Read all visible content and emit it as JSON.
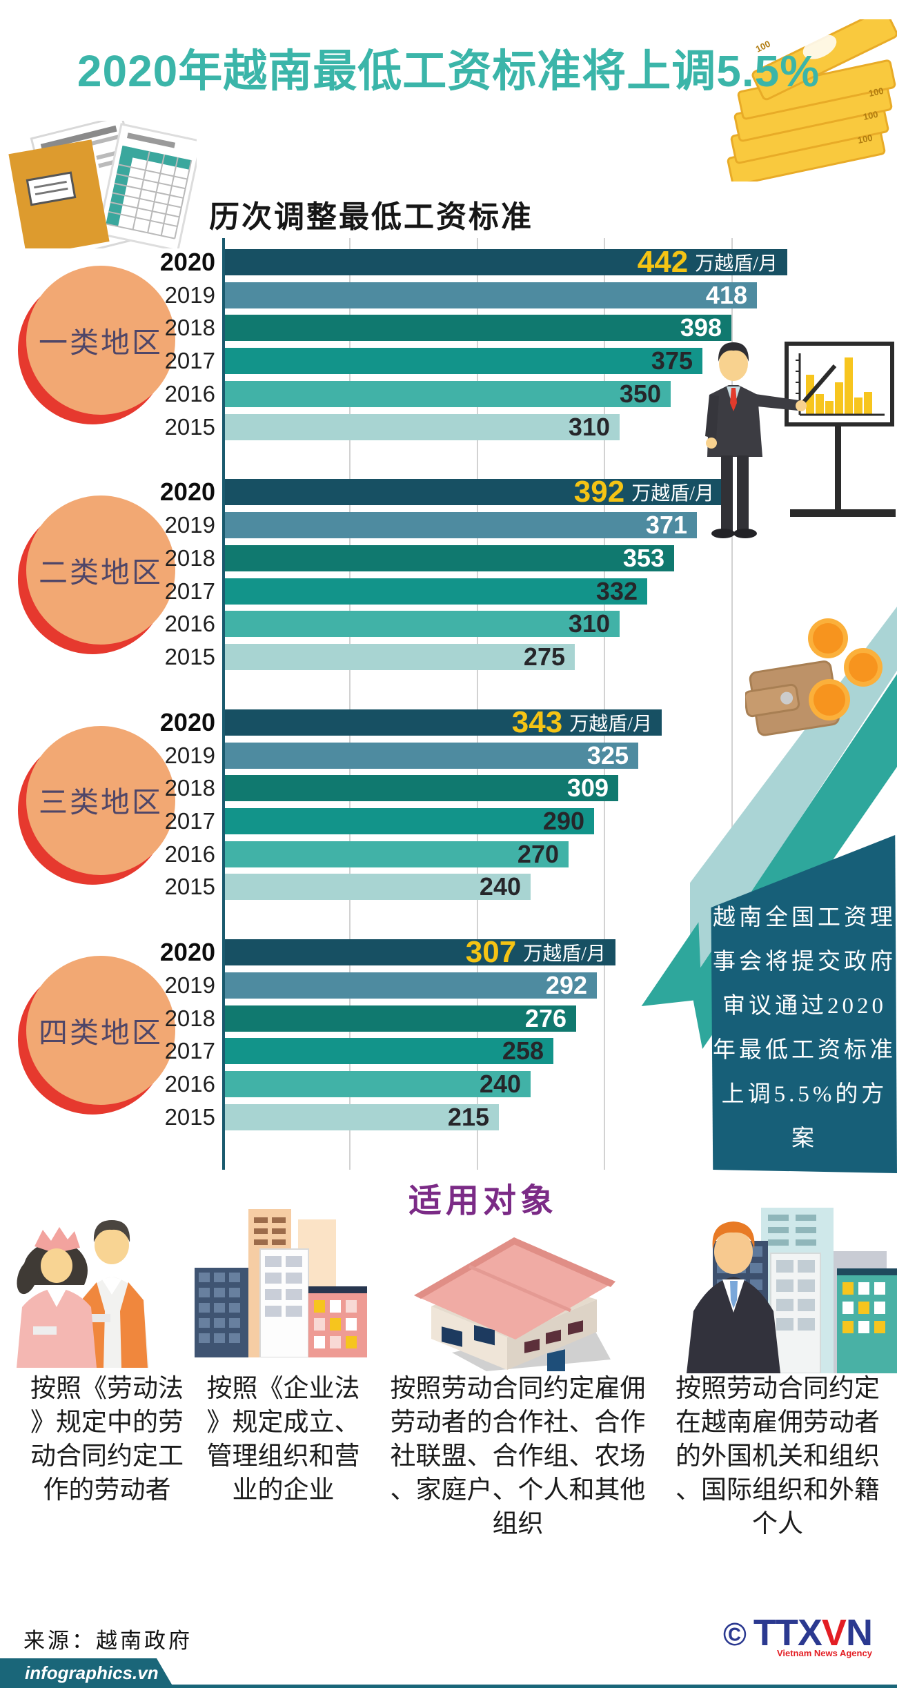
{
  "title": "2020年越南最低工资标准将上调5.5%",
  "chart": {
    "title": "历次调整最低工资标准",
    "unit": "万越盾/月"
  },
  "chart_data": {
    "type": "bar",
    "orientation": "horizontal",
    "title": "历次调整最低工资标准",
    "unit": "万越盾/月",
    "categories": [
      "2020",
      "2019",
      "2018",
      "2017",
      "2016",
      "2015"
    ],
    "series": [
      {
        "name": "一类地区",
        "values": [
          442,
          418,
          398,
          375,
          350,
          310
        ]
      },
      {
        "name": "二类地区",
        "values": [
          392,
          371,
          353,
          332,
          310,
          275
        ]
      },
      {
        "name": "三类地区",
        "values": [
          343,
          325,
          309,
          290,
          270,
          240
        ]
      },
      {
        "name": "四类地区",
        "values": [
          307,
          292,
          276,
          258,
          240,
          215
        ]
      }
    ],
    "xlim": [
      0,
      450
    ],
    "gridlines": [
      100,
      200,
      300,
      400
    ],
    "legend": "none",
    "xlabel": "",
    "ylabel": ""
  },
  "callout": {
    "text": "越南全国工资理\n事会将提交政府\n审议通过2020\n年最低工资标准\n上调5.5%的方案"
  },
  "applicability": {
    "title": "适用对象",
    "items": [
      {
        "icon": "workers-icon",
        "text": "按照《劳动法\n》规定中的劳\n动合同约定工\n作的劳动者"
      },
      {
        "icon": "buildings-icon",
        "text": "按照《企业法\n》规定成立、\n管理组织和营\n业的企业"
      },
      {
        "icon": "farm-house-icon",
        "text": "按照劳动合同约定雇佣\n劳动者的合作社、合作\n社联盟、合作组、农场\n、家庭户、个人和其他\n组织"
      },
      {
        "icon": "foreign-worker-icon",
        "text": "按照劳动合同约定\n在越南雇佣劳动者\n的外国机关和组织\n、国际组织和外籍\n个人"
      }
    ]
  },
  "footer": {
    "source": "来源：越南政府",
    "site": "infographics.vn",
    "logo": {
      "copyright": "©",
      "ttx": "TTX",
      "v": "V",
      "n": "N",
      "tagline": "Vietnam News Agency"
    }
  },
  "icons": {
    "top_left": "documents-folder-icon",
    "top_right": "money-stack-icon",
    "chart_side": "presenter-chart-icon",
    "wallet": "wallet-coins-icon"
  },
  "colors": {
    "accent_teal": "#3bb5a9",
    "bars": {
      "2020": "#175063",
      "2019": "#4e8ba0",
      "2018": "#10796f",
      "2017": "#12948a",
      "2016": "#41b2a7",
      "2015": "#a8d4d2"
    },
    "value_text": {
      "2020": "#f5c414",
      "2019": "#ffffff",
      "2018": "#ffffff",
      "2017": "#26262a",
      "2016": "#26262a",
      "2015": "#26262a"
    },
    "axis": "#1a5a6e",
    "gridline": "#d2d2d2",
    "circle_orange": "#f2a873",
    "circle_red": "#e6392e",
    "callout_bg": "#175f78",
    "tri_pale": "#aad4d5",
    "tri_mid": "#2ea79c",
    "purple": "#7b2b86",
    "footer_teal": "#1a6679",
    "logo_blue": "#2b3990",
    "logo_red": "#e31e24"
  }
}
